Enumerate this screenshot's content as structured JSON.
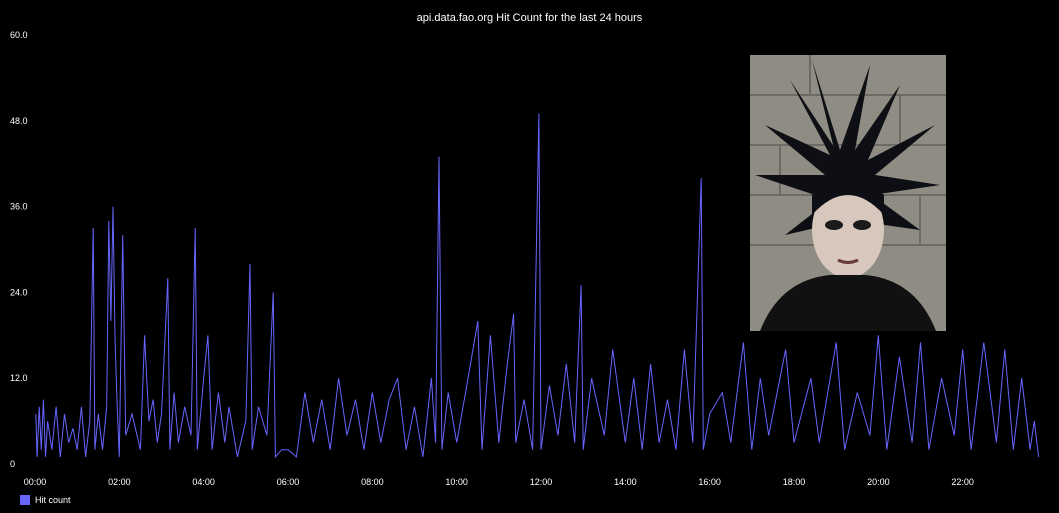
{
  "chart_data": {
    "type": "line",
    "title": "api.data.fao.org Hit Count for the last 24 hours",
    "xlabel": "",
    "ylabel": "",
    "ylim": [
      0,
      60
    ],
    "xlim_hours": [
      0,
      24
    ],
    "y_ticks": [
      "0",
      "12.0",
      "24.0",
      "36.0",
      "48.0",
      "60.0"
    ],
    "x_ticks": [
      "00:00",
      "02:00",
      "04:00",
      "06:00",
      "08:00",
      "10:00",
      "12:00",
      "14:00",
      "16:00",
      "18:00",
      "20:00",
      "22:00"
    ],
    "legend_position": "bottom-left",
    "grid": false,
    "series": [
      {
        "name": "Hit count",
        "color": "#6666ff",
        "sampling": "one point approximately every 2 minutes from 00:00",
        "points": [
          [
            0.02,
            7
          ],
          [
            0.05,
            1
          ],
          [
            0.1,
            8
          ],
          [
            0.15,
            2
          ],
          [
            0.2,
            9
          ],
          [
            0.25,
            1
          ],
          [
            0.3,
            6
          ],
          [
            0.4,
            2
          ],
          [
            0.5,
            8
          ],
          [
            0.6,
            1
          ],
          [
            0.7,
            7
          ],
          [
            0.8,
            3
          ],
          [
            0.9,
            5
          ],
          [
            1.0,
            2
          ],
          [
            1.1,
            8
          ],
          [
            1.2,
            1
          ],
          [
            1.3,
            6
          ],
          [
            1.38,
            33
          ],
          [
            1.42,
            2
          ],
          [
            1.5,
            7
          ],
          [
            1.6,
            2
          ],
          [
            1.7,
            8
          ],
          [
            1.75,
            34
          ],
          [
            1.8,
            20
          ],
          [
            1.85,
            36
          ],
          [
            1.9,
            17
          ],
          [
            1.95,
            8
          ],
          [
            2.0,
            1
          ],
          [
            2.08,
            32
          ],
          [
            2.15,
            4
          ],
          [
            2.3,
            7
          ],
          [
            2.5,
            2
          ],
          [
            2.6,
            18
          ],
          [
            2.7,
            6
          ],
          [
            2.8,
            9
          ],
          [
            2.9,
            3
          ],
          [
            3.0,
            7
          ],
          [
            3.15,
            26
          ],
          [
            3.2,
            2
          ],
          [
            3.3,
            10
          ],
          [
            3.4,
            3
          ],
          [
            3.55,
            8
          ],
          [
            3.7,
            4
          ],
          [
            3.8,
            33
          ],
          [
            3.85,
            2
          ],
          [
            4.0,
            12
          ],
          [
            4.1,
            18
          ],
          [
            4.2,
            2
          ],
          [
            4.35,
            10
          ],
          [
            4.5,
            3
          ],
          [
            4.6,
            8
          ],
          [
            4.8,
            1
          ],
          [
            5.0,
            6
          ],
          [
            5.1,
            28
          ],
          [
            5.15,
            2
          ],
          [
            5.3,
            8
          ],
          [
            5.5,
            4
          ],
          [
            5.65,
            24
          ],
          [
            5.7,
            1
          ],
          [
            5.85,
            2
          ],
          [
            6.0,
            2
          ],
          [
            6.2,
            1
          ],
          [
            6.4,
            10
          ],
          [
            6.6,
            3
          ],
          [
            6.8,
            9
          ],
          [
            7.0,
            2
          ],
          [
            7.2,
            12
          ],
          [
            7.4,
            4
          ],
          [
            7.6,
            9
          ],
          [
            7.8,
            2
          ],
          [
            8.0,
            10
          ],
          [
            8.2,
            3
          ],
          [
            8.4,
            9
          ],
          [
            8.6,
            12
          ],
          [
            8.8,
            2
          ],
          [
            9.0,
            8
          ],
          [
            9.2,
            1
          ],
          [
            9.4,
            12
          ],
          [
            9.5,
            3
          ],
          [
            9.58,
            43
          ],
          [
            9.65,
            2
          ],
          [
            9.8,
            10
          ],
          [
            10.0,
            3
          ],
          [
            10.3,
            13
          ],
          [
            10.5,
            20
          ],
          [
            10.6,
            2
          ],
          [
            10.8,
            18
          ],
          [
            11.0,
            3
          ],
          [
            11.2,
            14
          ],
          [
            11.35,
            21
          ],
          [
            11.4,
            3
          ],
          [
            11.6,
            9
          ],
          [
            11.8,
            2
          ],
          [
            11.95,
            49
          ],
          [
            12.0,
            2
          ],
          [
            12.2,
            11
          ],
          [
            12.4,
            4
          ],
          [
            12.6,
            14
          ],
          [
            12.8,
            3
          ],
          [
            12.95,
            25
          ],
          [
            13.0,
            2
          ],
          [
            13.2,
            12
          ],
          [
            13.5,
            4
          ],
          [
            13.7,
            16
          ],
          [
            14.0,
            3
          ],
          [
            14.2,
            12
          ],
          [
            14.4,
            2
          ],
          [
            14.6,
            14
          ],
          [
            14.8,
            3
          ],
          [
            15.0,
            9
          ],
          [
            15.2,
            2
          ],
          [
            15.4,
            16
          ],
          [
            15.6,
            3
          ],
          [
            15.8,
            40
          ],
          [
            15.85,
            2
          ],
          [
            16.0,
            7
          ],
          [
            16.3,
            10
          ],
          [
            16.5,
            3
          ],
          [
            16.8,
            17
          ],
          [
            17.0,
            2
          ],
          [
            17.2,
            12
          ],
          [
            17.4,
            4
          ],
          [
            17.8,
            16
          ],
          [
            18.0,
            3
          ],
          [
            18.4,
            12
          ],
          [
            18.6,
            3
          ],
          [
            19.0,
            17
          ],
          [
            19.2,
            2
          ],
          [
            19.5,
            10
          ],
          [
            19.8,
            4
          ],
          [
            20.0,
            18
          ],
          [
            20.2,
            2
          ],
          [
            20.5,
            15
          ],
          [
            20.8,
            3
          ],
          [
            21.0,
            17
          ],
          [
            21.2,
            2
          ],
          [
            21.5,
            12
          ],
          [
            21.8,
            4
          ],
          [
            22.0,
            16
          ],
          [
            22.2,
            2
          ],
          [
            22.5,
            17
          ],
          [
            22.8,
            3
          ],
          [
            23.0,
            16
          ],
          [
            23.2,
            2
          ],
          [
            23.4,
            12
          ],
          [
            23.6,
            2
          ],
          [
            23.7,
            6
          ],
          [
            23.8,
            1
          ]
        ]
      }
    ]
  },
  "photo": {
    "description_icon": "punk-portrait-photo"
  }
}
